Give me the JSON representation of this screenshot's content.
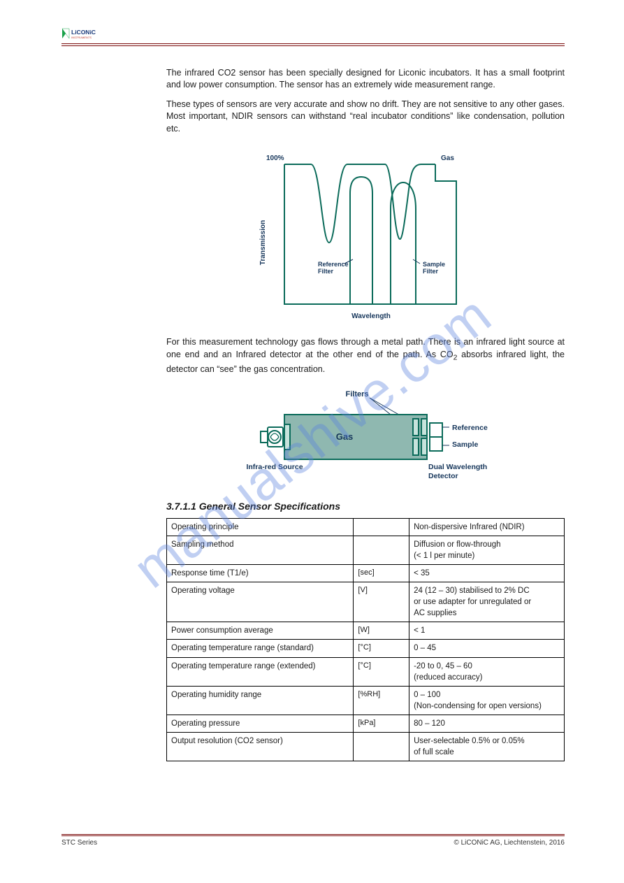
{
  "watermark": "manualshive.com",
  "logo": {
    "brand": "LiCONiC",
    "sub": "INSTRUMENTS",
    "accent_color": "#19a24a",
    "text_color": "#1a3a7a",
    "sub_color": "#c23a2a"
  },
  "rule_color": "#7a0a0a",
  "paragraphs": {
    "p1": "The infrared CO2 sensor has been specially designed for Liconic incubators. It has a small footprint and low power consumption. The sensor has an extremely wide measurement range.",
    "p2": "These types of sensors are very accurate and show no drift. They are not sensitive to any other gases. Most important, NDIR sensors can withstand “real incubator conditions” like condensation, pollution etc.",
    "p3_pre": "For this measurement technology gas flows through a metal path. There is an infrared light source at one end and an Infrared detector at the other end of the path. As CO",
    "p3_sub": "2",
    "p3_post": " absorbs infrared light, the detector can “see” the gas concentration."
  },
  "fig1": {
    "ylabel": "Transmission",
    "ymax_label": "100%",
    "xlabel": "Wavelength",
    "gas_label": "Gas",
    "ref_filter_label": "Reference\nFilter",
    "sample_filter_label": "Sample\nFilter",
    "stroke": "#0b6b5a",
    "fill": "#1a8a73",
    "fontsize": 10
  },
  "fig2": {
    "filters_label": "Filters",
    "gas_label": "Gas",
    "ir_source_label": "Infra-red Source",
    "reference_label": "Reference",
    "sample_label": "Sample",
    "detector_label": "Dual Wavelength\nDetector",
    "body_fill": "#8fb8b0",
    "body_stroke": "#0b6b5a",
    "window_fill": "#c7e3dc",
    "font_color": "#15355a",
    "fontsize": 10
  },
  "spec_heading": "3.7.1.1 General Sensor Specifications",
  "table": {
    "rows": [
      {
        "c1": "Operating principle",
        "c2": "",
        "c3": "Non-dispersive Infrared (NDIR)"
      },
      {
        "c1": "Sampling method",
        "c2": "",
        "c3": "Diffusion or flow-through\n(< 1 l per minute)"
      },
      {
        "c1": "Response time (T1/e)",
        "c2": "[sec]",
        "c3": "< 35"
      },
      {
        "c1": "Operating voltage",
        "c2": "[V]",
        "c3": "24 (12 – 30) stabilised to 2% DC\nor use adapter for unregulated or\nAC supplies"
      },
      {
        "c1": "Power consumption average",
        "c2": "[W]",
        "c3": "< 1"
      },
      {
        "c1": "Operating temperature range (standard)",
        "c2": "[°C]",
        "c3": "0 – 45"
      },
      {
        "c1": "Operating temperature range (extended)",
        "c2": "[°C]",
        "c3": "-20 to 0, 45 – 60\n(reduced accuracy)"
      },
      {
        "c1": "Operating humidity range",
        "c2": "[%RH]",
        "c3": "0 – 100\n(Non-condensing for open versions)"
      },
      {
        "c1": "Operating pressure",
        "c2": "[kPa]",
        "c3": "80 – 120"
      },
      {
        "c1": "Output resolution (CO2 sensor)",
        "c2": "",
        "c3": "User-selectable 0.5% or 0.05%\nof full scale"
      }
    ]
  },
  "footer": {
    "left": "STC Series",
    "right": "© LiCONiC AG, Liechtenstein, 2016"
  }
}
